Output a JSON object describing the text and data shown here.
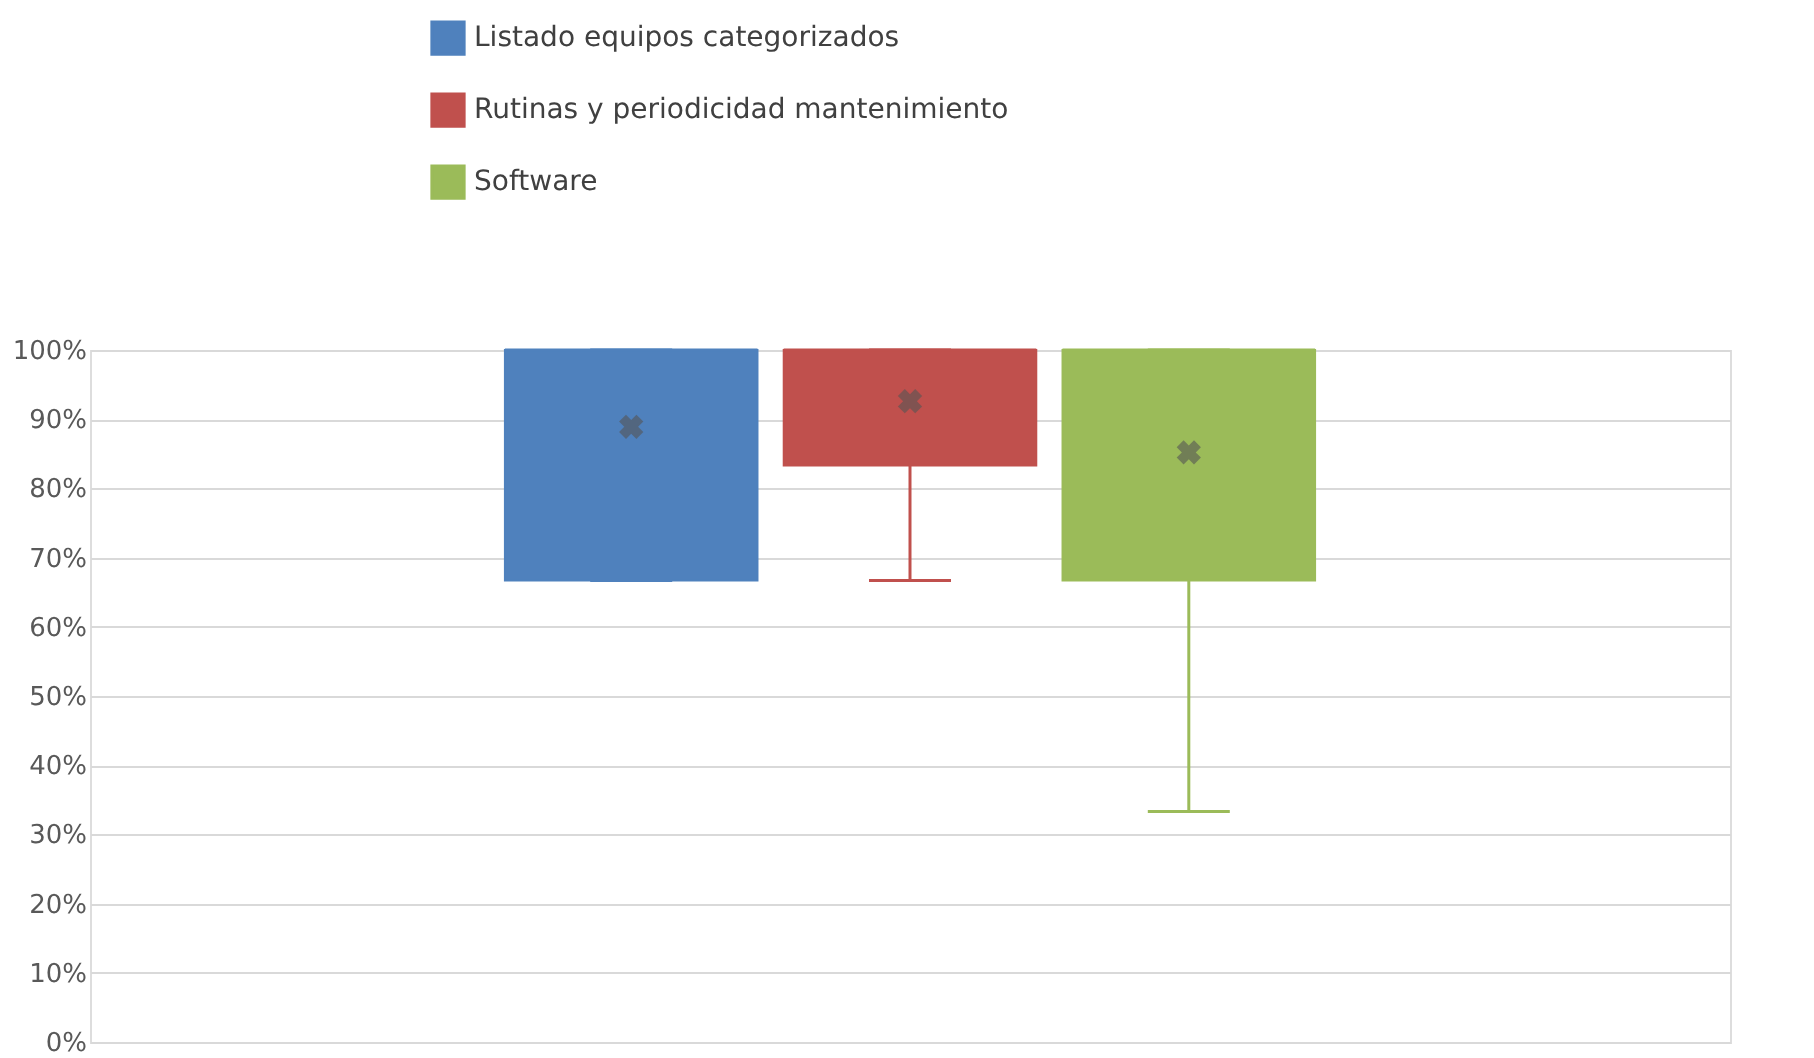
{
  "chart_data": {
    "type": "box",
    "categories": [
      null
    ],
    "series": [
      {
        "name": "Listado equipos categorizados",
        "color": "#4f81bd",
        "boxes": [
          {
            "low": 66.7,
            "q1": 66.7,
            "median": 100,
            "q3": 100,
            "high": 100,
            "mean": 88.9
          }
        ]
      },
      {
        "name": "Rutinas y periodicidad  mantenimiento",
        "color": "#c0504d",
        "boxes": [
          {
            "low": 66.7,
            "q1": 83.3,
            "median": 100,
            "q3": 100,
            "high": 100,
            "mean": 92.6
          }
        ]
      },
      {
        "name": "Software",
        "color": "#9bbb59",
        "boxes": [
          {
            "low": 33.3,
            "q1": 66.7,
            "median": 100,
            "q3": 100,
            "high": 100,
            "mean": 85.2
          }
        ]
      }
    ],
    "ylim": [
      0,
      100
    ],
    "yticks": [
      {
        "value": 0,
        "label": "0%"
      },
      {
        "value": 10,
        "label": "10%"
      },
      {
        "value": 20,
        "label": "20%"
      },
      {
        "value": 30,
        "label": "30%"
      },
      {
        "value": 40,
        "label": "40%"
      },
      {
        "value": 50,
        "label": "50%"
      },
      {
        "value": 60,
        "label": "60%"
      },
      {
        "value": 70,
        "label": "70%"
      },
      {
        "value": 80,
        "label": "80%"
      },
      {
        "value": 90,
        "label": "90%"
      },
      {
        "value": 100,
        "label": "100%"
      }
    ],
    "grid": "y",
    "legend": "top"
  }
}
